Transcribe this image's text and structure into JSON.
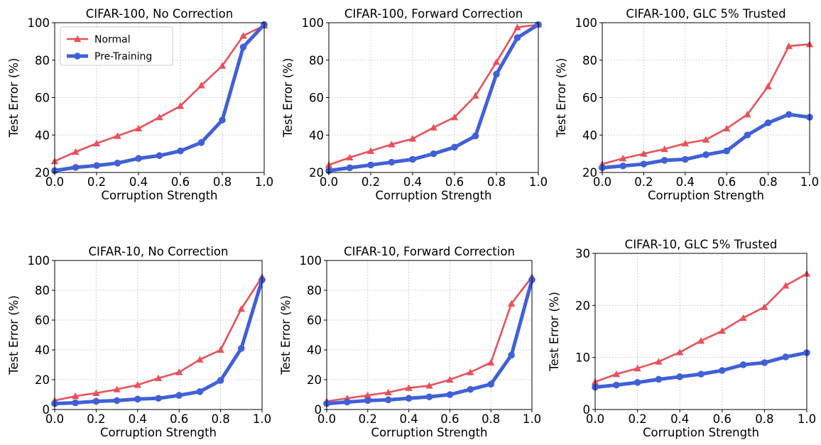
{
  "chart_data": [
    {
      "type": "line",
      "title": "CIFAR-100, No Correction",
      "xlabel": "Corruption Strength",
      "ylabel": "Test Error (%)",
      "xlim": [
        0,
        1
      ],
      "ylim": [
        20,
        100
      ],
      "xticks": [
        0.0,
        0.2,
        0.4,
        0.6,
        0.8,
        1.0
      ],
      "yticks": [
        20,
        40,
        60,
        80,
        100
      ],
      "grid": true,
      "legend": "top-left",
      "x": [
        0.0,
        0.1,
        0.2,
        0.3,
        0.4,
        0.5,
        0.6,
        0.7,
        0.8,
        0.9,
        1.0
      ],
      "series": [
        {
          "name": "Normal",
          "color": "#e8515a",
          "marker": "triangle",
          "values": [
            26,
            31,
            35.5,
            39.5,
            43.5,
            49.5,
            55.5,
            66.5,
            77,
            93,
            98.5
          ]
        },
        {
          "name": "Pre-Training",
          "color": "#4060d8",
          "marker": "circle",
          "values": [
            21,
            22.7,
            23.7,
            25,
            27.5,
            29,
            31.5,
            36,
            48,
            87,
            99
          ]
        }
      ]
    },
    {
      "type": "line",
      "title": "CIFAR-100, Forward Correction",
      "xlabel": "Corruption Strength",
      "ylabel": "Test Error (%)",
      "xlim": [
        0,
        1
      ],
      "ylim": [
        20,
        100
      ],
      "xticks": [
        0.0,
        0.2,
        0.4,
        0.6,
        0.8,
        1.0
      ],
      "yticks": [
        20,
        40,
        60,
        80,
        100
      ],
      "grid": true,
      "x": [
        0.0,
        0.1,
        0.2,
        0.3,
        0.4,
        0.5,
        0.6,
        0.7,
        0.8,
        0.9,
        1.0
      ],
      "series": [
        {
          "name": "Normal",
          "color": "#e8515a",
          "marker": "triangle",
          "values": [
            24,
            28,
            31.5,
            35,
            38,
            44,
            49.5,
            61,
            79,
            97.5,
            99
          ]
        },
        {
          "name": "Pre-Training",
          "color": "#4060d8",
          "marker": "circle",
          "values": [
            21,
            22.5,
            24,
            25.5,
            27,
            30,
            33.5,
            39.5,
            72.5,
            92,
            99
          ]
        }
      ]
    },
    {
      "type": "line",
      "title": "CIFAR-100, GLC 5% Trusted",
      "xlabel": "Corruption Strength",
      "ylabel": "Test Error (%)",
      "xlim": [
        0,
        1
      ],
      "ylim": [
        20,
        100
      ],
      "xticks": [
        0.0,
        0.2,
        0.4,
        0.6,
        0.8,
        1.0
      ],
      "yticks": [
        20,
        40,
        60,
        80,
        100
      ],
      "grid": true,
      "x": [
        0.0,
        0.1,
        0.2,
        0.3,
        0.4,
        0.5,
        0.6,
        0.7,
        0.8,
        0.9,
        1.0
      ],
      "series": [
        {
          "name": "Normal",
          "color": "#e8515a",
          "marker": "triangle",
          "values": [
            24.5,
            27.5,
            30,
            32.5,
            35.5,
            37.5,
            43.5,
            51,
            66,
            87.5,
            88.5
          ]
        },
        {
          "name": "Pre-Training",
          "color": "#4060d8",
          "marker": "circle",
          "values": [
            22.5,
            23.5,
            24.5,
            26.5,
            27,
            29.5,
            31.5,
            40,
            46.5,
            51,
            49.5
          ]
        }
      ]
    },
    {
      "type": "line",
      "title": "CIFAR-10, No Correction",
      "xlabel": "Corruption Strength",
      "ylabel": "Test Error (%)",
      "xlim": [
        0,
        1
      ],
      "ylim": [
        0,
        100
      ],
      "xticks": [
        0.0,
        0.2,
        0.4,
        0.6,
        0.8,
        1.0
      ],
      "yticks": [
        0,
        20,
        40,
        60,
        80,
        100
      ],
      "grid": true,
      "x": [
        0.0,
        0.1,
        0.2,
        0.3,
        0.4,
        0.5,
        0.6,
        0.7,
        0.8,
        0.9,
        1.0
      ],
      "series": [
        {
          "name": "Normal",
          "color": "#e8515a",
          "marker": "triangle",
          "values": [
            6,
            9,
            11,
            13.5,
            16.5,
            21,
            25,
            33.5,
            40,
            67.5,
            89
          ]
        },
        {
          "name": "Pre-Training",
          "color": "#4060d8",
          "marker": "circle",
          "values": [
            4,
            4.5,
            5.5,
            6,
            7,
            7.5,
            9.5,
            12,
            19.5,
            41,
            87
          ]
        }
      ]
    },
    {
      "type": "line",
      "title": "CIFAR-10, Forward Correction",
      "xlabel": "Corruption Strength",
      "ylabel": "Test Error (%)",
      "xlim": [
        0,
        1
      ],
      "ylim": [
        0,
        100
      ],
      "xticks": [
        0.0,
        0.2,
        0.4,
        0.6,
        0.8,
        1.0
      ],
      "yticks": [
        0,
        20,
        40,
        60,
        80,
        100
      ],
      "grid": true,
      "x": [
        0.0,
        0.1,
        0.2,
        0.3,
        0.4,
        0.5,
        0.6,
        0.7,
        0.8,
        0.9,
        1.0
      ],
      "series": [
        {
          "name": "Normal",
          "color": "#e8515a",
          "marker": "triangle",
          "values": [
            5.5,
            7.5,
            9.5,
            11.5,
            14.5,
            16,
            20,
            25,
            31.5,
            71,
            89
          ]
        },
        {
          "name": "Pre-Training",
          "color": "#4060d8",
          "marker": "circle",
          "values": [
            4,
            5,
            6,
            6.5,
            7.5,
            8.5,
            10,
            13.5,
            17,
            36.5,
            87
          ]
        }
      ]
    },
    {
      "type": "line",
      "title": "CIFAR-10, GLC 5% Trusted",
      "xlabel": "Corruption Strength",
      "ylabel": "Test Error (%)",
      "xlim": [
        0,
        1
      ],
      "ylim": [
        0,
        30
      ],
      "xticks": [
        0.0,
        0.2,
        0.4,
        0.6,
        0.8,
        1.0
      ],
      "yticks": [
        0,
        10,
        20,
        30
      ],
      "grid": true,
      "x": [
        0.0,
        0.1,
        0.2,
        0.3,
        0.4,
        0.5,
        0.6,
        0.7,
        0.8,
        0.9,
        1.0
      ],
      "series": [
        {
          "name": "Normal",
          "color": "#e8515a",
          "marker": "triangle",
          "values": [
            5.3,
            6.8,
            7.9,
            9.2,
            11,
            13.2,
            15.1,
            17.6,
            19.7,
            23.8,
            26.1
          ]
        },
        {
          "name": "Pre-Training",
          "color": "#4060d8",
          "marker": "circle",
          "values": [
            4.3,
            4.7,
            5.2,
            5.8,
            6.3,
            6.8,
            7.5,
            8.6,
            9,
            10.1,
            10.9
          ]
        }
      ]
    }
  ]
}
